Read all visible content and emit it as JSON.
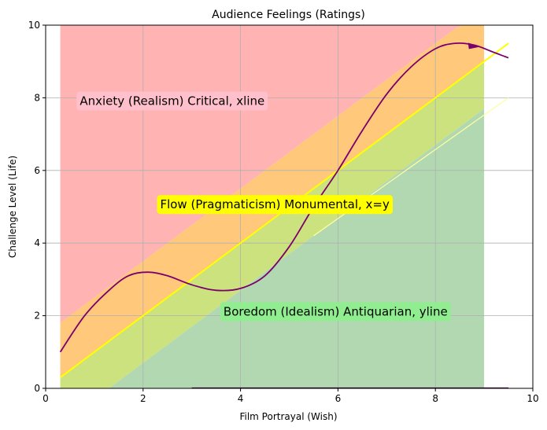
{
  "chart_data": {
    "type": "area",
    "title": "Audience Feelings (Ratings)",
    "xlabel": "Film Portrayal (Wish)",
    "ylabel": "Challenge Level (Life)",
    "xlim": [
      0,
      10
    ],
    "ylim": [
      0,
      10
    ],
    "xticks": [
      0,
      2,
      4,
      6,
      8,
      10
    ],
    "yticks": [
      0,
      2,
      4,
      6,
      8,
      10
    ],
    "grid": true,
    "regions": [
      {
        "name": "anxiety",
        "color": "#ffb3b3",
        "x_range": [
          0.3,
          9.0
        ],
        "lower": "x+1.5",
        "upper": 10
      },
      {
        "name": "flow",
        "color": "#ffc87a",
        "x_range": [
          0.3,
          9.0
        ],
        "lower": "x",
        "upper": "x+1.5"
      },
      {
        "name": "boredom-upper",
        "color": "#cce27f",
        "x_range": [
          0.3,
          9.0
        ],
        "lower": "x-1.3",
        "upper": "x"
      },
      {
        "name": "boredom",
        "color": "#b2d8b2",
        "x_range": [
          0.3,
          9.0
        ],
        "lower": 0,
        "upper": "x-1.3"
      }
    ],
    "lines": [
      {
        "name": "x=y",
        "color": "#ffff00",
        "points": [
          [
            0.3,
            0.3
          ],
          [
            9.5,
            9.5
          ]
        ]
      },
      {
        "name": "boredom-edge",
        "color": "#ffffa0",
        "points": [
          [
            5.5,
            4.2
          ],
          [
            9.5,
            8.0
          ]
        ]
      }
    ],
    "curve": {
      "color": "#7b006e",
      "points": [
        [
          0.3,
          1.0
        ],
        [
          0.8,
          2.0
        ],
        [
          1.3,
          2.7
        ],
        [
          1.7,
          3.1
        ],
        [
          2.1,
          3.2
        ],
        [
          2.5,
          3.1
        ],
        [
          3.0,
          2.85
        ],
        [
          3.5,
          2.7
        ],
        [
          4.0,
          2.75
        ],
        [
          4.5,
          3.1
        ],
        [
          5.0,
          3.9
        ],
        [
          5.5,
          5.0
        ],
        [
          6.0,
          6.0
        ],
        [
          6.5,
          7.1
        ],
        [
          7.0,
          8.1
        ],
        [
          7.5,
          8.85
        ],
        [
          8.0,
          9.35
        ],
        [
          8.4,
          9.5
        ],
        [
          8.8,
          9.45
        ],
        [
          9.2,
          9.25
        ],
        [
          9.5,
          9.1
        ]
      ],
      "arrow_at": [
        8.8,
        9.45
      ]
    },
    "baseline": {
      "color": "#3b003b",
      "points": [
        [
          3.0,
          0.0
        ],
        [
          9.5,
          0.0
        ]
      ]
    },
    "annotations": [
      {
        "text": "Anxiety (Realism) Critical, xline",
        "x": 0.7,
        "y": 7.9,
        "bg": "#ffc0cb"
      },
      {
        "text": "Flow (Pragmaticism) Monumental, x=y",
        "x": 2.35,
        "y": 5.05,
        "bg": "#ffff00"
      },
      {
        "text": "Boredom (Idealism) Antiquarian, yline",
        "x": 3.65,
        "y": 2.1,
        "bg": "#90ee90"
      }
    ]
  }
}
